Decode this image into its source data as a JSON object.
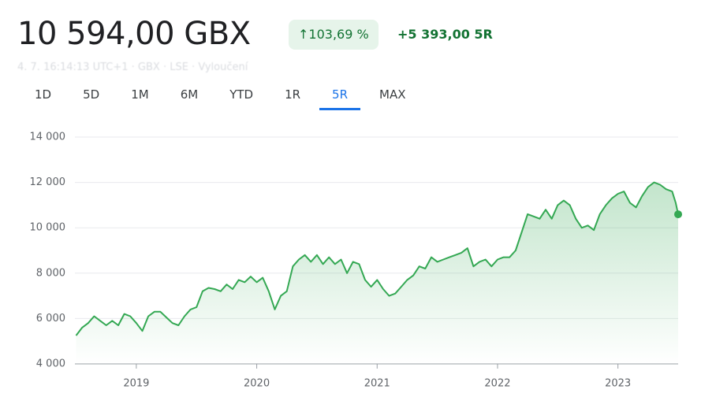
{
  "header": {
    "price": "10 594,00 GBX",
    "change_pct": "103,69 %",
    "change_abs": "+5 393,00 5R",
    "meta": "4. 7. 16:14:13 UTC+1 · GBX · LSE · Vyloučení"
  },
  "tabs": {
    "items": [
      "1D",
      "5D",
      "1M",
      "6M",
      "YTD",
      "1R",
      "5R",
      "MAX"
    ],
    "selected": 6
  },
  "chart_data": {
    "type": "line",
    "color": "#34a853",
    "area": true,
    "grid": true,
    "x": [
      2018.5,
      2018.55,
      2018.6,
      2018.65,
      2018.7,
      2018.75,
      2018.8,
      2018.85,
      2018.9,
      2018.95,
      2019.0,
      2019.05,
      2019.1,
      2019.15,
      2019.2,
      2019.25,
      2019.3,
      2019.35,
      2019.4,
      2019.45,
      2019.5,
      2019.55,
      2019.6,
      2019.65,
      2019.7,
      2019.75,
      2019.8,
      2019.85,
      2019.9,
      2019.95,
      2020.0,
      2020.05,
      2020.1,
      2020.15,
      2020.2,
      2020.25,
      2020.3,
      2020.35,
      2020.4,
      2020.45,
      2020.5,
      2020.55,
      2020.6,
      2020.65,
      2020.7,
      2020.75,
      2020.8,
      2020.85,
      2020.9,
      2020.95,
      2021.0,
      2021.05,
      2021.1,
      2021.15,
      2021.2,
      2021.25,
      2021.3,
      2021.35,
      2021.4,
      2021.45,
      2021.5,
      2021.55,
      2021.6,
      2021.65,
      2021.7,
      2021.75,
      2021.8,
      2021.85,
      2021.9,
      2021.95,
      2022.0,
      2022.05,
      2022.1,
      2022.15,
      2022.2,
      2022.25,
      2022.3,
      2022.35,
      2022.4,
      2022.45,
      2022.5,
      2022.55,
      2022.6,
      2022.65,
      2022.7,
      2022.75,
      2022.8,
      2022.85,
      2022.9,
      2022.95,
      2023.0,
      2023.05,
      2023.1,
      2023.15,
      2023.2,
      2023.25,
      2023.3,
      2023.35,
      2023.4,
      2023.45,
      2023.48,
      2023.5
    ],
    "values": [
      5250,
      5600,
      5800,
      6100,
      5900,
      5700,
      5900,
      5700,
      6200,
      6100,
      5800,
      5450,
      6100,
      6300,
      6300,
      6050,
      5800,
      5700,
      6100,
      6400,
      6500,
      7200,
      7350,
      7300,
      7200,
      7500,
      7300,
      7700,
      7600,
      7850,
      7600,
      7800,
      7200,
      6400,
      7000,
      7200,
      8300,
      8600,
      8800,
      8500,
      8800,
      8400,
      8700,
      8400,
      8600,
      8000,
      8500,
      8400,
      7700,
      7400,
      7700,
      7300,
      7000,
      7100,
      7400,
      7700,
      7900,
      8300,
      8200,
      8700,
      8500,
      8600,
      8700,
      8800,
      8900,
      9100,
      8300,
      8500,
      8600,
      8300,
      8600,
      8700,
      8700,
      9000,
      9800,
      10600,
      10500,
      10400,
      10800,
      10400,
      11000,
      11200,
      11000,
      10400,
      10000,
      10100,
      9900,
      10600,
      11000,
      11300,
      11500,
      11600,
      11100,
      10900,
      11400,
      11800,
      12000,
      11900,
      11700,
      11600,
      11100,
      10594
    ],
    "xlim": [
      2018.49,
      2023.5
    ],
    "xticks": [
      2019,
      2020,
      2021,
      2022,
      2023
    ],
    "ylim": [
      4000,
      14000
    ],
    "yticks": [
      {
        "value": 4000,
        "label": "4 000"
      },
      {
        "value": 6000,
        "label": "6 000"
      },
      {
        "value": 8000,
        "label": "8 000"
      },
      {
        "value": 10000,
        "label": "10 000"
      },
      {
        "value": 12000,
        "label": "12 000"
      },
      {
        "value": 14000,
        "label": "14 000"
      }
    ]
  }
}
